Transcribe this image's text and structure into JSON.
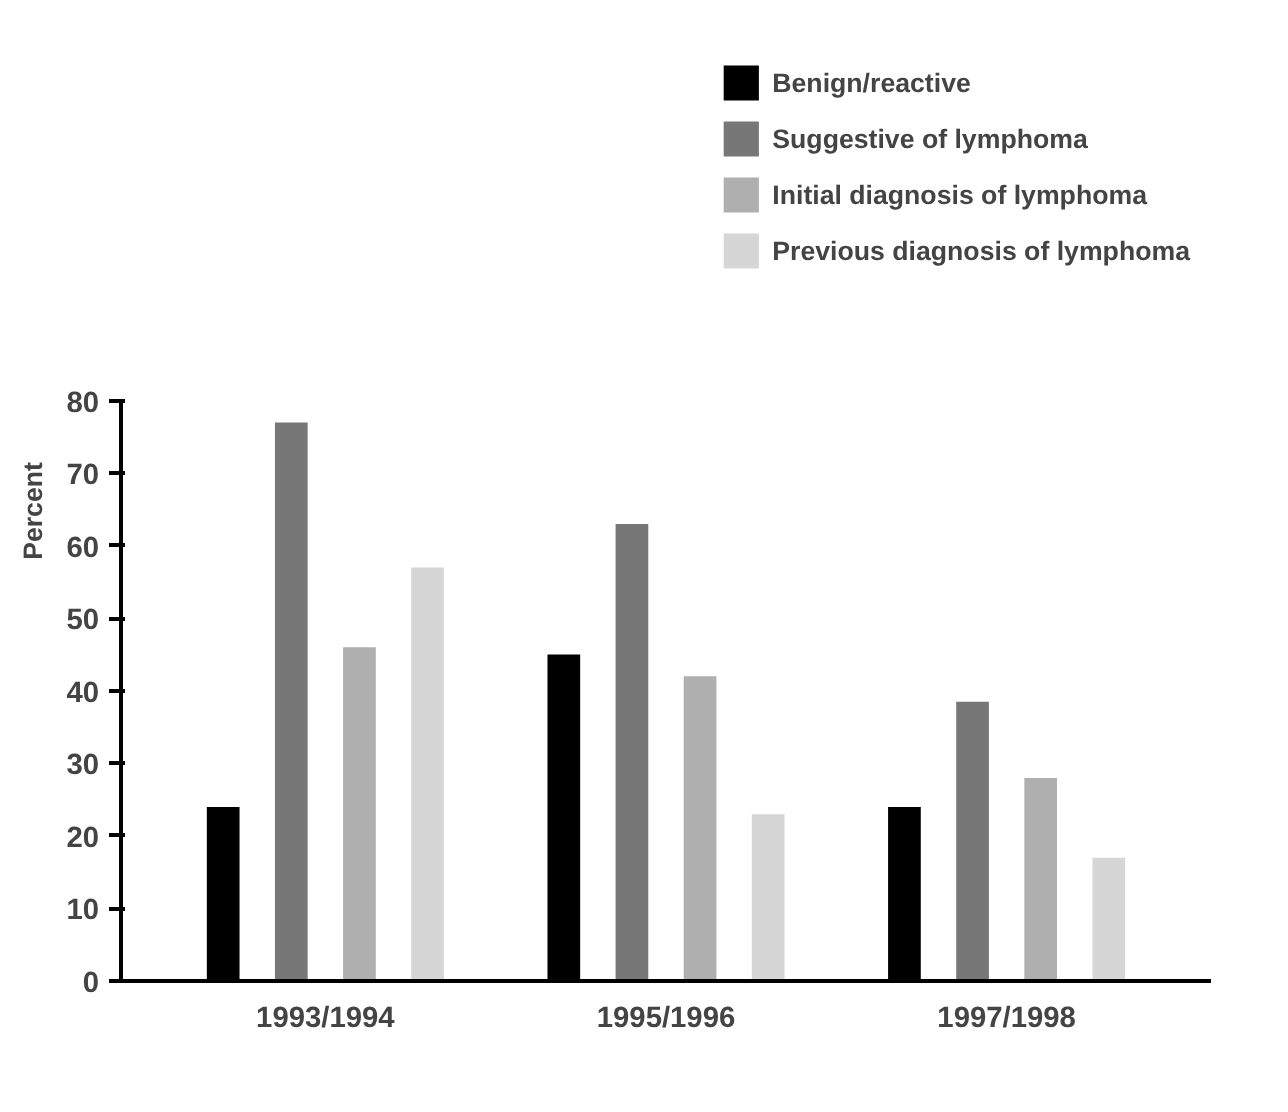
{
  "chart_data": {
    "type": "bar",
    "ylabel": "Percent",
    "categories": [
      "1993/1994",
      "1995/1996",
      "1997/1998"
    ],
    "series": [
      {
        "name": "Benign/reactive",
        "color": "#000000",
        "values": [
          24,
          45,
          24
        ]
      },
      {
        "name": "Suggestive of lymphoma",
        "color": "#777777",
        "values": [
          77,
          63,
          38.5
        ]
      },
      {
        "name": "Initial diagnosis of lymphoma",
        "color": "#afafaf",
        "values": [
          46,
          42,
          28
        ]
      },
      {
        "name": "Previous diagnosis of lymphoma",
        "color": "#d6d6d6",
        "values": [
          57,
          23,
          17
        ]
      }
    ],
    "ylim": [
      0,
      80
    ],
    "yticks": [
      0,
      10,
      20,
      30,
      40,
      50,
      60,
      70,
      80
    ],
    "grid": false,
    "legend": "top right"
  }
}
